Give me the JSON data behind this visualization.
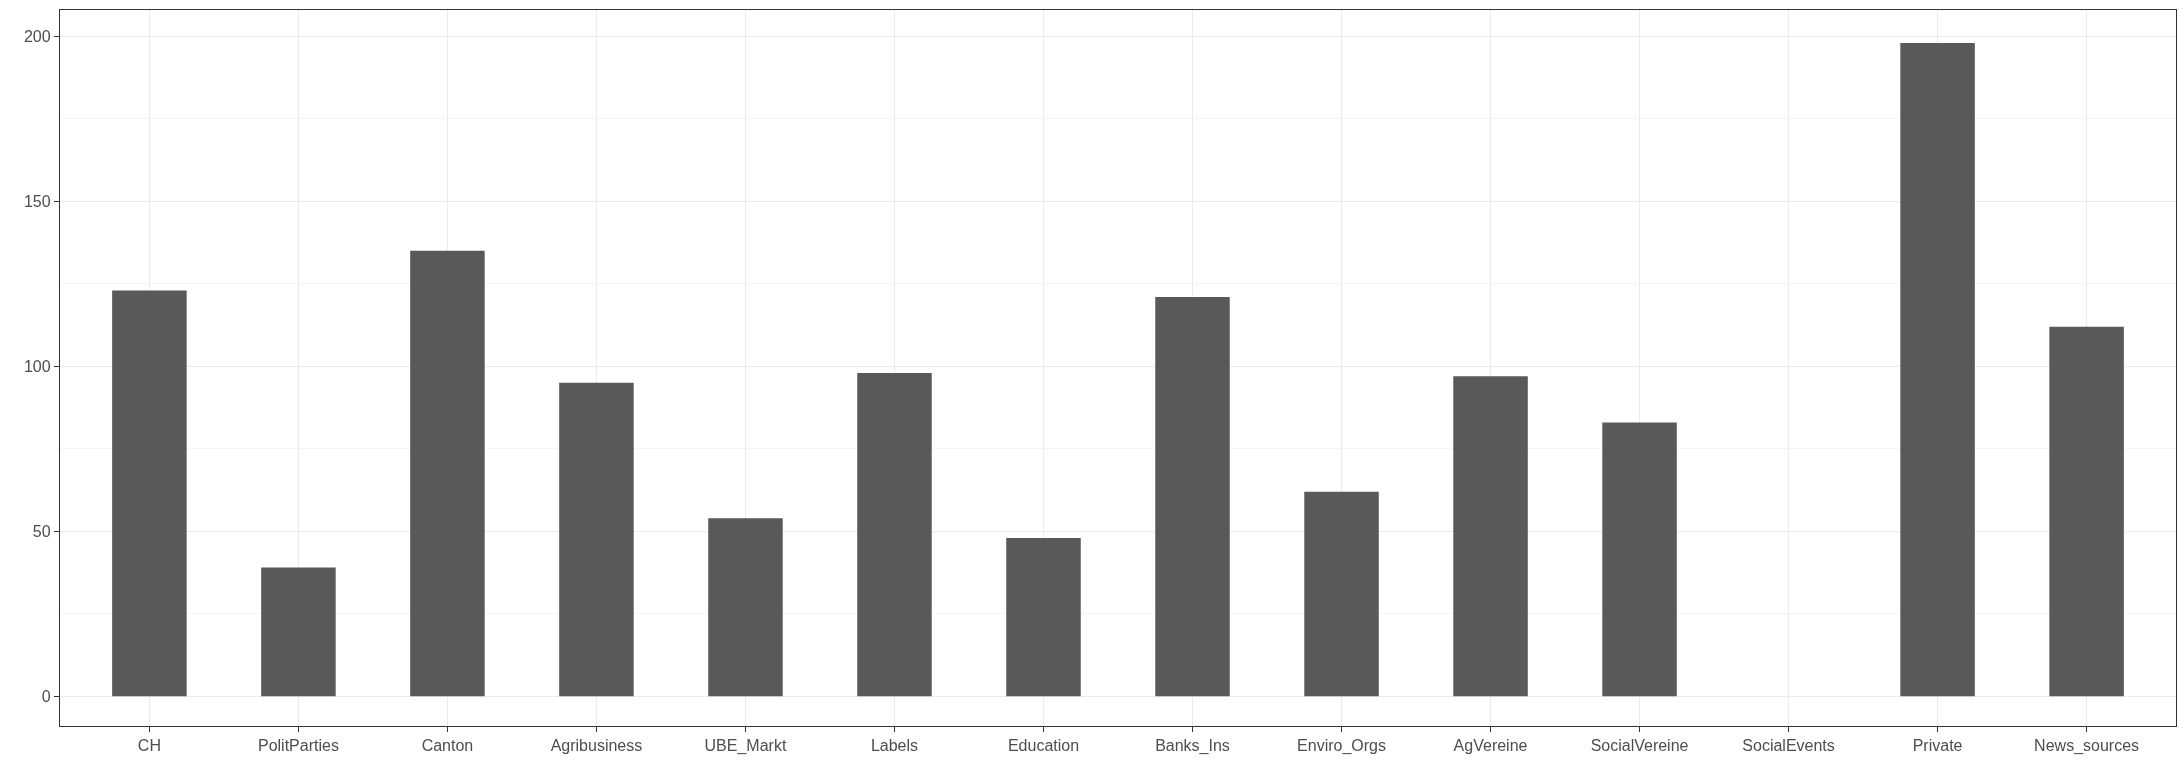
{
  "chart_data": {
    "type": "bar",
    "categories": [
      "CH",
      "PolitParties",
      "Canton",
      "Agribusiness",
      "UBE_Markt",
      "Labels",
      "Education",
      "Banks_Ins",
      "Enviro_Orgs",
      "AgVereine",
      "SocialVereine",
      "SocialEvents",
      "Private",
      "News_sources"
    ],
    "values": [
      123,
      39,
      135,
      95,
      54,
      98,
      48,
      121,
      62,
      97,
      83,
      0,
      198,
      112
    ],
    "color": "#595959",
    "ylim": [
      -9,
      208
    ],
    "yticks": [
      0,
      {
        "value": 25,
        "label": null
      },
      50,
      {
        "value": 75,
        "label": null
      },
      100,
      {
        "value": 125,
        "label": null
      },
      150,
      {
        "value": 175,
        "label": null
      },
      200
    ],
    "grid": true
  }
}
